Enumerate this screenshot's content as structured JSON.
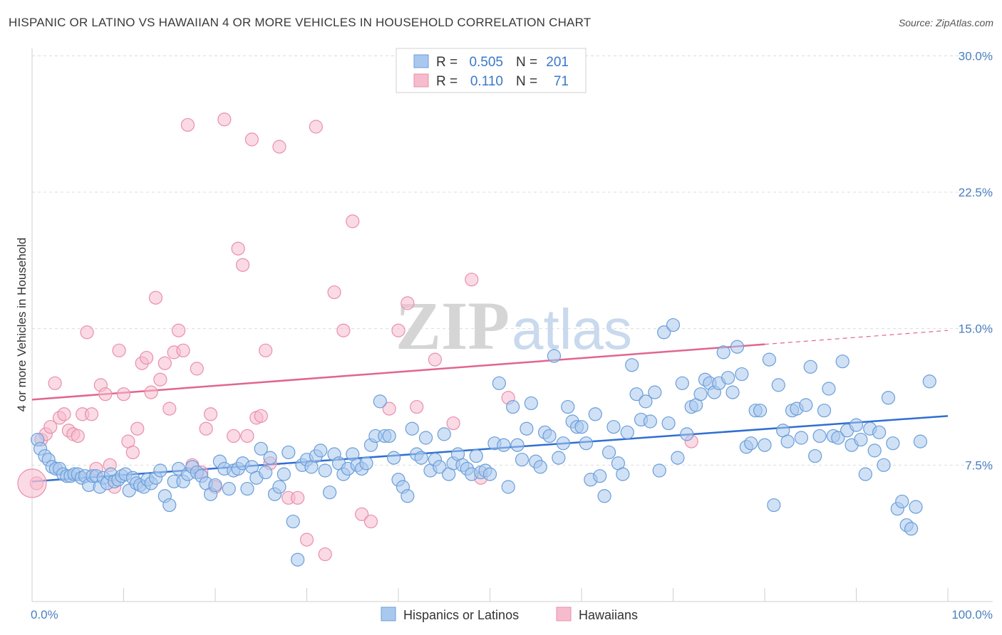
{
  "title": "HISPANIC OR LATINO VS HAWAIIAN 4 OR MORE VEHICLES IN HOUSEHOLD CORRELATION CHART",
  "source": "Source: ZipAtlas.com",
  "watermark": {
    "zip": "ZIP",
    "atlas": "atlas"
  },
  "legend": {
    "rows": [
      {
        "r_label": "R =",
        "r_value": "0.505",
        "n_label": "N =",
        "n_value": "201"
      },
      {
        "r_label": "R =",
        "r_value": "0.110",
        "n_label": "N =",
        "n_value": "71"
      }
    ]
  },
  "bottom_legend": [
    "Hispanics or Latinos",
    "Hawaiians"
  ],
  "colors": {
    "blue_fill": "#a9c8ef",
    "blue_stroke": "#6a9ed8",
    "blue_line": "#2f6fd1",
    "pink_fill": "#f6bccd",
    "pink_stroke": "#ea8fab",
    "pink_line": "#e0668f",
    "axis_label": "#4a7fc1",
    "grid": "#dcdcdc"
  },
  "chart_data": {
    "type": "scatter",
    "title": "HISPANIC OR LATINO VS HAWAIIAN 4 OR MORE VEHICLES IN HOUSEHOLD CORRELATION CHART",
    "xlabel": "",
    "ylabel": "4 or more Vehicles in Household",
    "xlim": [
      0,
      100
    ],
    "ylim": [
      0,
      30.5
    ],
    "x_tick_labels": [
      "0.0%",
      "100.0%"
    ],
    "y_ticks": [
      7.5,
      15.0,
      22.5,
      30.0
    ],
    "y_tick_labels": [
      "7.5%",
      "15.0%",
      "22.5%",
      "30.0%"
    ],
    "grid": "horizontal dashed",
    "legend_position": "top-center",
    "series": [
      {
        "name": "Hispanics or Latinos",
        "r": 0.505,
        "n": 201,
        "trend": {
          "x": [
            0,
            100
          ],
          "y": [
            6.6,
            10.2
          ],
          "dashed_from": null
        },
        "points": [
          [
            0.6,
            8.9
          ],
          [
            0.9,
            8.4
          ],
          [
            1.4,
            8.0
          ],
          [
            1.8,
            7.8
          ],
          [
            2.2,
            7.4
          ],
          [
            2.6,
            7.3
          ],
          [
            3.0,
            7.3
          ],
          [
            3.4,
            7.0
          ],
          [
            3.8,
            6.9
          ],
          [
            4.2,
            6.9
          ],
          [
            4.6,
            7.0
          ],
          [
            5.0,
            7.0
          ],
          [
            5.4,
            6.8
          ],
          [
            5.8,
            6.9
          ],
          [
            6.2,
            6.4
          ],
          [
            6.6,
            6.9
          ],
          [
            7.0,
            6.9
          ],
          [
            7.4,
            6.3
          ],
          [
            7.8,
            6.8
          ],
          [
            8.2,
            6.5
          ],
          [
            8.6,
            7.0
          ],
          [
            9.0,
            6.6
          ],
          [
            9.4,
            6.7
          ],
          [
            9.8,
            6.9
          ],
          [
            10.2,
            7.0
          ],
          [
            10.6,
            6.1
          ],
          [
            11.0,
            6.8
          ],
          [
            11.4,
            6.5
          ],
          [
            11.8,
            6.4
          ],
          [
            12.2,
            6.3
          ],
          [
            12.6,
            6.7
          ],
          [
            13.0,
            6.5
          ],
          [
            13.5,
            6.8
          ],
          [
            14.0,
            7.2
          ],
          [
            14.5,
            5.8
          ],
          [
            15.0,
            5.3
          ],
          [
            15.5,
            6.6
          ],
          [
            16.0,
            7.3
          ],
          [
            16.5,
            6.6
          ],
          [
            17.0,
            7.0
          ],
          [
            17.5,
            7.4
          ],
          [
            18.0,
            7.1
          ],
          [
            18.5,
            6.9
          ],
          [
            19.0,
            6.5
          ],
          [
            19.5,
            5.9
          ],
          [
            20.0,
            6.4
          ],
          [
            20.5,
            7.7
          ],
          [
            21.0,
            7.3
          ],
          [
            21.5,
            6.2
          ],
          [
            22.0,
            7.2
          ],
          [
            22.5,
            7.3
          ],
          [
            23.0,
            7.6
          ],
          [
            23.5,
            6.2
          ],
          [
            24.0,
            7.4
          ],
          [
            24.5,
            6.8
          ],
          [
            25.0,
            8.4
          ],
          [
            25.5,
            7.1
          ],
          [
            26.0,
            7.9
          ],
          [
            26.5,
            5.9
          ],
          [
            27.0,
            6.3
          ],
          [
            27.5,
            7.0
          ],
          [
            28.0,
            8.2
          ],
          [
            28.5,
            4.4
          ],
          [
            29.0,
            2.3
          ],
          [
            29.5,
            7.5
          ],
          [
            30.0,
            7.8
          ],
          [
            30.5,
            7.4
          ],
          [
            31.0,
            8.0
          ],
          [
            31.5,
            8.3
          ],
          [
            32.0,
            7.2
          ],
          [
            32.5,
            6.0
          ],
          [
            33.0,
            8.1
          ],
          [
            33.5,
            7.6
          ],
          [
            34.0,
            7.0
          ],
          [
            34.5,
            7.3
          ],
          [
            35.0,
            8.1
          ],
          [
            35.5,
            7.5
          ],
          [
            36.0,
            7.3
          ],
          [
            36.5,
            7.6
          ],
          [
            37.0,
            8.6
          ],
          [
            37.5,
            9.1
          ],
          [
            38.0,
            11.0
          ],
          [
            38.5,
            9.1
          ],
          [
            39.0,
            9.1
          ],
          [
            39.5,
            7.9
          ],
          [
            40.0,
            6.7
          ],
          [
            40.5,
            6.3
          ],
          [
            41.0,
            5.8
          ],
          [
            41.5,
            9.5
          ],
          [
            42.0,
            8.1
          ],
          [
            42.5,
            7.9
          ],
          [
            43.0,
            9.0
          ],
          [
            43.5,
            7.2
          ],
          [
            44.0,
            7.8
          ],
          [
            44.5,
            7.4
          ],
          [
            45.0,
            9.2
          ],
          [
            45.5,
            7.0
          ],
          [
            46.0,
            7.6
          ],
          [
            46.5,
            8.1
          ],
          [
            47.0,
            7.5
          ],
          [
            47.5,
            7.3
          ],
          [
            48.0,
            7.0
          ],
          [
            48.5,
            8.0
          ],
          [
            49.0,
            7.1
          ],
          [
            49.5,
            7.2
          ],
          [
            50.0,
            7.0
          ],
          [
            50.5,
            8.7
          ],
          [
            51.0,
            12.0
          ],
          [
            51.5,
            8.6
          ],
          [
            52.0,
            6.3
          ],
          [
            52.5,
            10.7
          ],
          [
            53.0,
            8.6
          ],
          [
            53.5,
            7.8
          ],
          [
            54.0,
            9.5
          ],
          [
            54.5,
            10.9
          ],
          [
            55.0,
            7.7
          ],
          [
            55.5,
            7.4
          ],
          [
            56.0,
            9.3
          ],
          [
            56.5,
            9.1
          ],
          [
            57.0,
            13.5
          ],
          [
            57.5,
            7.9
          ],
          [
            58.0,
            8.7
          ],
          [
            58.5,
            10.7
          ],
          [
            59.0,
            9.9
          ],
          [
            59.5,
            9.6
          ],
          [
            60.0,
            9.6
          ],
          [
            60.5,
            8.7
          ],
          [
            61.0,
            6.7
          ],
          [
            61.5,
            10.3
          ],
          [
            62.0,
            6.9
          ],
          [
            62.5,
            5.8
          ],
          [
            63.0,
            8.2
          ],
          [
            63.5,
            9.6
          ],
          [
            64.0,
            7.6
          ],
          [
            64.5,
            7.0
          ],
          [
            65.0,
            9.3
          ],
          [
            65.5,
            13.0
          ],
          [
            66.0,
            11.4
          ],
          [
            66.5,
            10.0
          ],
          [
            67.0,
            11.0
          ],
          [
            67.5,
            9.9
          ],
          [
            68.0,
            11.5
          ],
          [
            68.5,
            7.2
          ],
          [
            69.0,
            14.8
          ],
          [
            69.5,
            9.8
          ],
          [
            70.0,
            15.2
          ],
          [
            70.5,
            7.9
          ],
          [
            71.0,
            12.0
          ],
          [
            71.5,
            9.2
          ],
          [
            72.0,
            10.7
          ],
          [
            72.5,
            10.8
          ],
          [
            73.0,
            11.4
          ],
          [
            73.5,
            12.2
          ],
          [
            74.0,
            12.0
          ],
          [
            74.5,
            11.5
          ],
          [
            75.0,
            12.0
          ],
          [
            75.5,
            13.7
          ],
          [
            76.0,
            12.3
          ],
          [
            76.5,
            11.5
          ],
          [
            77.0,
            14.0
          ],
          [
            77.5,
            12.5
          ],
          [
            78.0,
            8.5
          ],
          [
            78.5,
            8.7
          ],
          [
            79.0,
            10.5
          ],
          [
            79.5,
            10.5
          ],
          [
            80.0,
            8.6
          ],
          [
            80.5,
            13.3
          ],
          [
            81.0,
            5.3
          ],
          [
            81.5,
            11.9
          ],
          [
            82.0,
            9.4
          ],
          [
            82.5,
            8.8
          ],
          [
            83.0,
            10.5
          ],
          [
            83.5,
            10.6
          ],
          [
            84.0,
            9.0
          ],
          [
            84.5,
            10.8
          ],
          [
            85.0,
            12.9
          ],
          [
            85.5,
            8.0
          ],
          [
            86.0,
            9.1
          ],
          [
            86.5,
            10.5
          ],
          [
            87.0,
            11.7
          ],
          [
            87.5,
            9.1
          ],
          [
            88.0,
            9.0
          ],
          [
            88.5,
            13.2
          ],
          [
            89.0,
            9.4
          ],
          [
            89.5,
            8.6
          ],
          [
            90.0,
            9.7
          ],
          [
            90.5,
            8.9
          ],
          [
            91.0,
            7.0
          ],
          [
            91.5,
            9.5
          ],
          [
            92.0,
            8.3
          ],
          [
            92.5,
            9.3
          ],
          [
            93.0,
            7.5
          ],
          [
            93.5,
            11.2
          ],
          [
            94.0,
            8.7
          ],
          [
            94.5,
            5.1
          ],
          [
            95.0,
            5.5
          ],
          [
            95.5,
            4.2
          ],
          [
            96.0,
            4.0
          ],
          [
            96.5,
            5.2
          ],
          [
            97.0,
            8.8
          ],
          [
            98.0,
            12.1
          ]
        ]
      },
      {
        "name": "Hawaiians",
        "r": 0.11,
        "n": 71,
        "trend": {
          "x": [
            0,
            100
          ],
          "y": [
            11.1,
            14.9
          ],
          "dashed_from": 80
        },
        "points": [
          [
            0.5,
            6.5
          ],
          [
            1.0,
            8.9
          ],
          [
            1.5,
            9.2
          ],
          [
            2.0,
            9.6
          ],
          [
            2.5,
            12.0
          ],
          [
            3.0,
            10.1
          ],
          [
            3.5,
            10.3
          ],
          [
            4.0,
            9.4
          ],
          [
            4.5,
            9.2
          ],
          [
            5.0,
            9.1
          ],
          [
            5.5,
            10.3
          ],
          [
            6.0,
            14.8
          ],
          [
            6.5,
            10.3
          ],
          [
            7.0,
            7.3
          ],
          [
            7.5,
            11.9
          ],
          [
            8.0,
            11.4
          ],
          [
            8.5,
            7.5
          ],
          [
            9.0,
            6.3
          ],
          [
            9.5,
            13.8
          ],
          [
            10.0,
            11.4
          ],
          [
            10.5,
            8.8
          ],
          [
            11.0,
            8.2
          ],
          [
            11.5,
            9.5
          ],
          [
            12.0,
            13.1
          ],
          [
            12.5,
            13.4
          ],
          [
            13.0,
            11.5
          ],
          [
            13.5,
            16.7
          ],
          [
            14.0,
            12.2
          ],
          [
            14.5,
            13.1
          ],
          [
            15.0,
            10.6
          ],
          [
            15.5,
            13.7
          ],
          [
            16.0,
            14.9
          ],
          [
            16.5,
            13.8
          ],
          [
            17.0,
            26.2
          ],
          [
            17.5,
            7.5
          ],
          [
            18.0,
            12.8
          ],
          [
            18.5,
            7.1
          ],
          [
            19.0,
            9.5
          ],
          [
            19.5,
            10.3
          ],
          [
            20.0,
            6.3
          ],
          [
            21.0,
            26.5
          ],
          [
            22.0,
            9.1
          ],
          [
            22.5,
            19.4
          ],
          [
            23.0,
            18.5
          ],
          [
            23.5,
            9.1
          ],
          [
            24.0,
            25.4
          ],
          [
            24.5,
            10.1
          ],
          [
            25.0,
            10.2
          ],
          [
            25.5,
            13.8
          ],
          [
            26.0,
            7.6
          ],
          [
            27.0,
            25.0
          ],
          [
            28.0,
            5.7
          ],
          [
            29.0,
            5.7
          ],
          [
            30.0,
            3.4
          ],
          [
            31.0,
            26.1
          ],
          [
            32.0,
            2.6
          ],
          [
            33.0,
            17.0
          ],
          [
            34.0,
            14.9
          ],
          [
            35.0,
            20.9
          ],
          [
            36.0,
            4.8
          ],
          [
            37.0,
            4.4
          ],
          [
            39.0,
            10.6
          ],
          [
            40.0,
            14.9
          ],
          [
            41.0,
            16.4
          ],
          [
            42.0,
            10.7
          ],
          [
            44.0,
            13.3
          ],
          [
            46.0,
            9.8
          ],
          [
            48.0,
            17.7
          ],
          [
            49.0,
            6.8
          ],
          [
            72.0,
            8.8
          ],
          [
            52.0,
            11.2
          ]
        ]
      }
    ]
  }
}
